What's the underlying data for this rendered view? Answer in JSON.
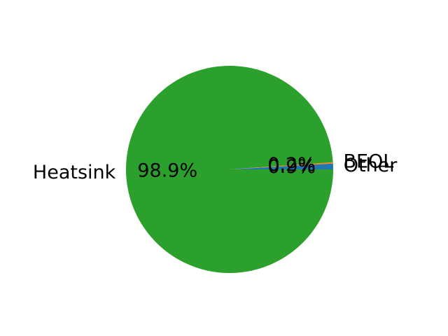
{
  "chart_data": {
    "type": "pie",
    "title": "",
    "start_angle_deg": 0,
    "direction": "counterclockwise",
    "slices": [
      {
        "name": "Other",
        "percent": 0.9,
        "label": "Other",
        "pct_label": "0.9%",
        "color": "#1f77b4"
      },
      {
        "name": "BEOL",
        "percent": 0.2,
        "label": "BEOL",
        "pct_label": "0.2%",
        "color": "#ff7f0e"
      },
      {
        "name": "Heatsink",
        "percent": 98.9,
        "label": "Heatsink",
        "pct_label": "98.9%",
        "color": "#2ca02c"
      }
    ]
  }
}
